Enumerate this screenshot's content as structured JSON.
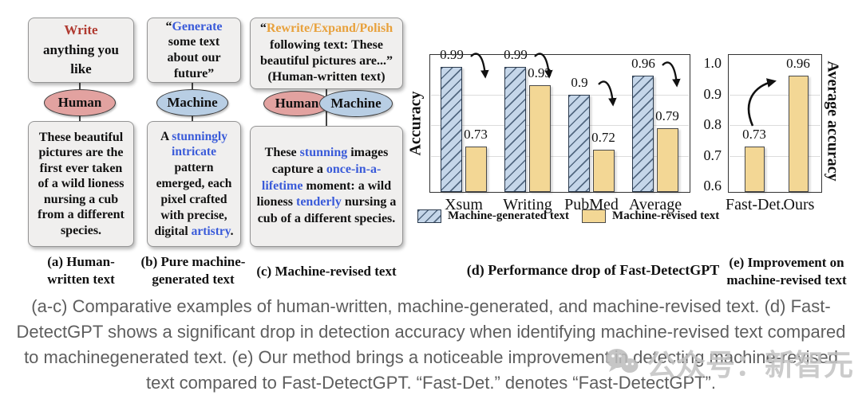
{
  "panel_a": {
    "prompt_red": "Write",
    "prompt_rest": " anything you like",
    "actor": "Human",
    "output": "These beautiful pictures are the first ever taken of a wild lioness nursing a cub from a different species.",
    "caption": "(a) Human-written text"
  },
  "panel_b": {
    "prompt_open_quote": "“",
    "prompt_blue": "Generate",
    "prompt_rest": " some text about our future”",
    "actor": "Machine",
    "output_pre": "A ",
    "output_blue1": "stunningly intricate",
    "output_mid": " pattern emerged, each pixel crafted with precise, digital ",
    "output_blue2": "artistry",
    "output_end": ".",
    "caption": "(b) Pure machine-generated text"
  },
  "panel_c": {
    "prompt_open_quote": "“",
    "prompt_orange": "Rewrite/Expand/Polish",
    "prompt_rest": " following text: These beautiful pictures are...”",
    "prompt_note": "(Human-written text)",
    "actor_left": "Human",
    "actor_right": "Machine",
    "output_pre": "These ",
    "output_blue1": "stunning",
    "output_mid1": " images capture a ",
    "output_blue2": "once-in-a-lifetime",
    "output_mid2": " moment: a wild lioness ",
    "output_blue3": "tenderly",
    "output_end": " nursing a cub of a different species.",
    "caption": "(c) Machine-revised text"
  },
  "chart_data": [
    {
      "id": "d",
      "type": "bar",
      "title": "(d) Performance drop of Fast-DetectGPT",
      "ylabel": "Accuracy",
      "ylim": [
        0.6,
        1.0
      ],
      "grid": "horizontal",
      "legend_position": "bottom",
      "categories": [
        "Xsum",
        "Writing",
        "PubMed",
        "Average"
      ],
      "series": [
        {
          "name": "Machine-generated text",
          "style": "hatched-blue",
          "color": "#c5d6e9",
          "values": [
            0.99,
            0.99,
            0.9,
            0.96
          ],
          "labels": [
            "0.99",
            "0.99",
            "0.9",
            "0.96"
          ]
        },
        {
          "name": "Machine-revised text",
          "style": "solid-tan",
          "color": "#f3d795",
          "values": [
            0.73,
            0.93,
            0.72,
            0.79
          ],
          "labels": [
            "0.73",
            "0.93",
            "0.72",
            "0.79"
          ]
        }
      ],
      "annotations": "curved arrows showing drop from machine-generated to machine-revised accuracy"
    },
    {
      "id": "e",
      "type": "bar",
      "title": "(e) Improvement on machine-revised text",
      "ylabel_right": "Average accuracy",
      "ylim": [
        0.6,
        1.0
      ],
      "grid": "horizontal",
      "yticks": [
        "1.0",
        "0.9",
        "0.8",
        "0.7",
        "0.6"
      ],
      "categories": [
        "Fast-Det.",
        "Ours"
      ],
      "values": [
        0.73,
        0.96
      ],
      "labels": [
        "0.73",
        "0.96"
      ],
      "bar_color": "#f3d795",
      "annotations": "curved arrow showing improvement from Fast-Det. to Ours"
    }
  ],
  "caption": "(a-c) Comparative examples of human-written, machine-generated, and machine-revised text. (d) Fast-DetectGPT shows a significant drop in detection accuracy when identifying machine-revised text compared to machinegenerated text. (e) Our method brings a noticeable improvement in detecting machine-revised text compared to Fast-DetectGPT. “Fast-Det.” denotes “Fast-DetectGPT”.",
  "watermark": {
    "icon": "wechat-icon",
    "text": "公众号：新智元"
  },
  "colors": {
    "keyword_red": "#b03a30",
    "keyword_blue": "#3a5bd9",
    "keyword_orange": "#e8a13c",
    "human_ellipse": "#e2a2a0",
    "machine_ellipse": "#b8cee4",
    "machine_generated_bar": "#c5d6e9",
    "machine_revised_bar": "#f3d795",
    "box_fill": "#f0efee"
  }
}
